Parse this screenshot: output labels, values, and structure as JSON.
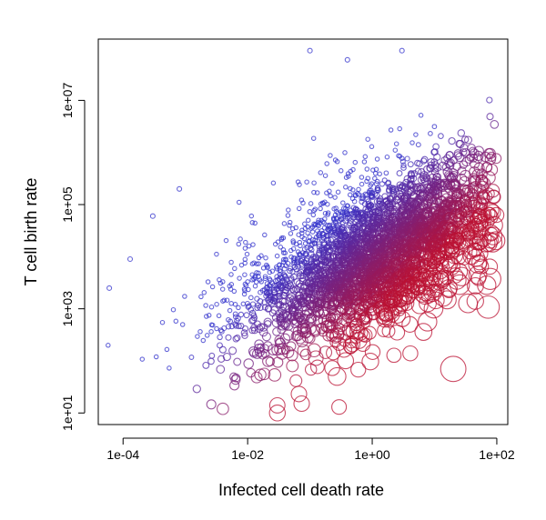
{
  "chart_data": {
    "type": "scatter",
    "title": "",
    "xlabel": "Infected cell death rate",
    "ylabel": "T cell birth rate",
    "x_scale": "log10",
    "y_scale": "log10",
    "xlim": [
      4e-05,
      150
    ],
    "ylim": [
      6,
      150000000
    ],
    "x_ticks": [
      {
        "value": 0.0001,
        "label": "1e-04"
      },
      {
        "value": 0.01,
        "label": "1e-02"
      },
      {
        "value": 1,
        "label": "1e+00"
      },
      {
        "value": 100,
        "label": "1e+02"
      }
    ],
    "y_ticks": [
      {
        "value": 10,
        "label": "1e+01"
      },
      {
        "value": 1000,
        "label": "1e+03"
      },
      {
        "value": 100000,
        "label": "1e+05"
      },
      {
        "value": 10000000,
        "label": "1e+07"
      }
    ],
    "grid": false,
    "legend": "none",
    "marker": "open-circle",
    "color_low": "#3333cc",
    "color_high": "#bb1133",
    "point_count_approx": 3000,
    "notable_points": [
      {
        "x": 6e-05,
        "y": 2500
      },
      {
        "x": 0.00013,
        "y": 9000
      },
      {
        "x": 0.0003,
        "y": 60000
      },
      {
        "x": 0.0008,
        "y": 200000
      },
      {
        "x": 0.1,
        "y": 90000000
      },
      {
        "x": 0.4,
        "y": 60000000
      },
      {
        "x": 3,
        "y": 90000000
      },
      {
        "x": 0.004,
        "y": 12
      },
      {
        "x": 0.03,
        "y": 10
      },
      {
        "x": 0.03,
        "y": 14
      },
      {
        "x": 20,
        "y": 70
      },
      {
        "x": 50,
        "y": 30000
      }
    ]
  }
}
